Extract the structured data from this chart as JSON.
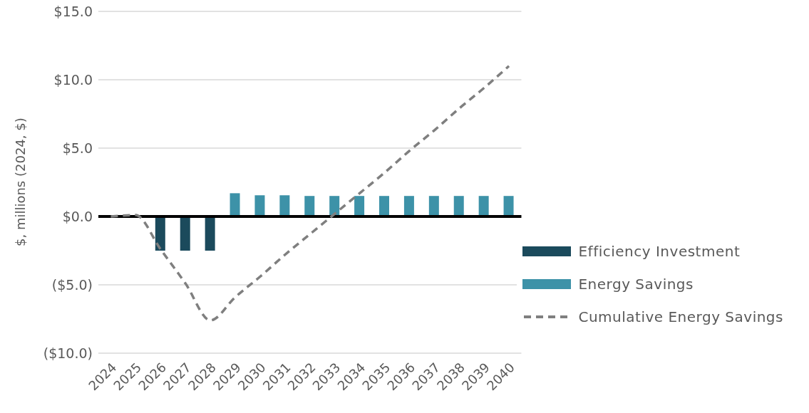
{
  "chart_data": {
    "type": "bar",
    "ylabel": "$, millions (2024, $)",
    "categories": [
      "2024",
      "2025",
      "2026",
      "2027",
      "2028",
      "2029",
      "2030",
      "2031",
      "2032",
      "2033",
      "2034",
      "2035",
      "2036",
      "2037",
      "2038",
      "2039",
      "2040"
    ],
    "series": [
      {
        "name": "Efficiency Investment",
        "color": "#1b4a5c",
        "values": [
          null,
          null,
          -2.5,
          -2.5,
          -2.5,
          null,
          null,
          null,
          null,
          null,
          null,
          null,
          null,
          null,
          null,
          null,
          null
        ]
      },
      {
        "name": "Energy Savings",
        "color": "#3d92a8",
        "values": [
          null,
          null,
          null,
          null,
          null,
          1.7,
          1.55,
          1.55,
          1.5,
          1.5,
          1.5,
          1.5,
          1.5,
          1.5,
          1.5,
          1.5,
          1.5
        ]
      },
      {
        "name": "Cumulative Energy Savings",
        "type": "line",
        "color": "#7f7f7f",
        "line_style": "dashed",
        "marker": "none",
        "values": [
          0,
          0.1,
          -2.4,
          -4.9,
          -7.6,
          -5.9,
          -4.4,
          -2.8,
          -1.3,
          0.2,
          1.7,
          3.2,
          4.8,
          6.3,
          7.9,
          9.4,
          11.0
        ]
      }
    ],
    "stacked": true,
    "ylim": [
      -10,
      15
    ],
    "yticks": [
      {
        "value": -10,
        "label": "($10.0)"
      },
      {
        "value": -5,
        "label": "($5.0)"
      },
      {
        "value": 0,
        "label": "$0.0"
      },
      {
        "value": 5,
        "label": "$5.0"
      },
      {
        "value": 10,
        "label": "$10.0"
      },
      {
        "value": 15,
        "label": "$15.0"
      }
    ],
    "grid": "y",
    "legend": "bottom right"
  }
}
